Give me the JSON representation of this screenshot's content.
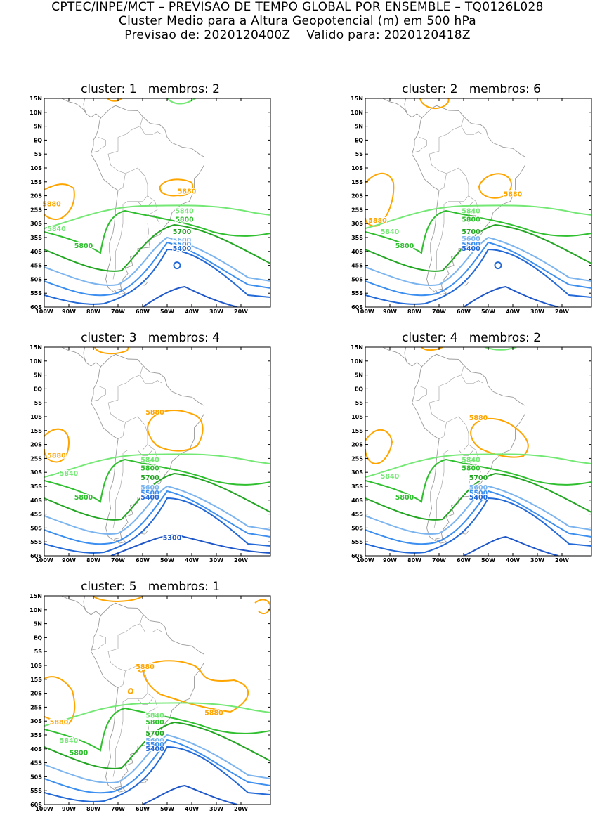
{
  "header": {
    "line1": "CPTEC/INPE/MCT – PREVISAO DE TEMPO GLOBAL POR ENSEMBLE – TQ0126L028",
    "line2": "Cluster Medio para a Altura Geopotencial (m) em 500 hPa",
    "line3": "Previsao de: 2020120400Z    Valido para: 2020120418Z"
  },
  "axes": {
    "lat_ticks": [
      "15N",
      "10N",
      "5N",
      "EQ",
      "5S",
      "10S",
      "15S",
      "20S",
      "25S",
      "30S",
      "35S",
      "40S",
      "45S",
      "50S",
      "55S",
      "60S"
    ],
    "lon_ticks": [
      "100W",
      "90W",
      "80W",
      "70W",
      "60W",
      "50W",
      "40W",
      "30W",
      "20W"
    ]
  },
  "colors": {
    "5300": "#1f57c9",
    "5400": "#2369d7",
    "5500": "#3c8ff0",
    "5600": "#7bb4ee",
    "5700": "#24a624",
    "5800": "#2fbf2f",
    "5840": "#74e874",
    "5880": "#ffa500",
    "coast": "#9a9a9a"
  },
  "panels": [
    {
      "title": "cluster: 1   membros: 2",
      "labels": [
        {
          "text": "5880",
          "lon": -97,
          "lat": -23,
          "color": "5880"
        },
        {
          "text": "5880",
          "lon": -42,
          "lat": -18.5,
          "color": "5880"
        },
        {
          "text": "5840",
          "lon": -95,
          "lat": -32,
          "color": "5840"
        },
        {
          "text": "5840",
          "lon": -43,
          "lat": -25.5,
          "color": "5840"
        },
        {
          "text": "5800",
          "lon": -43,
          "lat": -28.5,
          "color": "5800"
        },
        {
          "text": "5800",
          "lon": -84,
          "lat": -38,
          "color": "5800"
        },
        {
          "text": "5700",
          "lon": -44,
          "lat": -33,
          "color": "5700"
        },
        {
          "text": "5600",
          "lon": -44,
          "lat": -36,
          "color": "5600"
        },
        {
          "text": "5500",
          "lon": -44,
          "lat": -37.5,
          "color": "5500"
        },
        {
          "text": "5400",
          "lon": -44,
          "lat": -39,
          "color": "5400"
        }
      ]
    },
    {
      "title": "cluster: 2   membros: 6",
      "labels": [
        {
          "text": "5880",
          "lon": -95,
          "lat": -29,
          "color": "5880"
        },
        {
          "text": "5880",
          "lon": -40,
          "lat": -19.5,
          "color": "5880"
        },
        {
          "text": "5840",
          "lon": -90,
          "lat": -33,
          "color": "5840"
        },
        {
          "text": "5840",
          "lon": -57,
          "lat": -25.5,
          "color": "5840"
        },
        {
          "text": "5800",
          "lon": -57,
          "lat": -28.5,
          "color": "5800"
        },
        {
          "text": "5800",
          "lon": -84,
          "lat": -38,
          "color": "5800"
        },
        {
          "text": "5700",
          "lon": -57,
          "lat": -33,
          "color": "5700"
        },
        {
          "text": "5600",
          "lon": -57,
          "lat": -35.5,
          "color": "5600"
        },
        {
          "text": "5500",
          "lon": -57,
          "lat": -37.5,
          "color": "5500"
        },
        {
          "text": "5400",
          "lon": -57,
          "lat": -39,
          "color": "5400"
        }
      ]
    },
    {
      "title": "cluster: 3   membros: 4",
      "labels": [
        {
          "text": "5880",
          "lon": -95,
          "lat": -24,
          "color": "5880"
        },
        {
          "text": "5880",
          "lon": -55,
          "lat": -8.5,
          "color": "5880"
        },
        {
          "text": "5840",
          "lon": -90,
          "lat": -30.5,
          "color": "5840"
        },
        {
          "text": "5840",
          "lon": -57,
          "lat": -25.5,
          "color": "5840"
        },
        {
          "text": "5800",
          "lon": -57,
          "lat": -28.5,
          "color": "5800"
        },
        {
          "text": "5800",
          "lon": -84,
          "lat": -39,
          "color": "5800"
        },
        {
          "text": "5700",
          "lon": -57,
          "lat": -32,
          "color": "5700"
        },
        {
          "text": "5600",
          "lon": -57,
          "lat": -35.5,
          "color": "5600"
        },
        {
          "text": "5500",
          "lon": -57,
          "lat": -37.5,
          "color": "5500"
        },
        {
          "text": "5400",
          "lon": -57,
          "lat": -39,
          "color": "5400"
        },
        {
          "text": "5300",
          "lon": -48,
          "lat": -53.5,
          "color": "5300"
        }
      ]
    },
    {
      "title": "cluster: 4   membros: 2",
      "labels": [
        {
          "text": "5880",
          "lon": -54,
          "lat": -10.5,
          "color": "5880"
        },
        {
          "text": "5840",
          "lon": -90,
          "lat": -31.5,
          "color": "5840"
        },
        {
          "text": "5840",
          "lon": -57,
          "lat": -25.5,
          "color": "5840"
        },
        {
          "text": "5800",
          "lon": -57,
          "lat": -28.5,
          "color": "5800"
        },
        {
          "text": "5800",
          "lon": -84,
          "lat": -39,
          "color": "5800"
        },
        {
          "text": "5700",
          "lon": -54,
          "lat": -32,
          "color": "5700"
        },
        {
          "text": "5600",
          "lon": -54,
          "lat": -35.5,
          "color": "5600"
        },
        {
          "text": "5500",
          "lon": -54,
          "lat": -37.5,
          "color": "5500"
        },
        {
          "text": "5400",
          "lon": -54,
          "lat": -39,
          "color": "5400"
        }
      ]
    },
    {
      "title": "cluster: 5   membros: 1",
      "labels": [
        {
          "text": "5880",
          "lon": -94,
          "lat": -30.5,
          "color": "5880"
        },
        {
          "text": "5880",
          "lon": -59,
          "lat": -10.5,
          "color": "5880"
        },
        {
          "text": "5880",
          "lon": -31,
          "lat": -27,
          "color": "5880"
        },
        {
          "text": "5840",
          "lon": -90,
          "lat": -37,
          "color": "5840"
        },
        {
          "text": "5840",
          "lon": -55,
          "lat": -28,
          "color": "5840"
        },
        {
          "text": "5800",
          "lon": -55,
          "lat": -30.5,
          "color": "5800"
        },
        {
          "text": "5800",
          "lon": -86,
          "lat": -41.5,
          "color": "5800"
        },
        {
          "text": "5700",
          "lon": -55,
          "lat": -34.5,
          "color": "5700"
        },
        {
          "text": "5600",
          "lon": -55,
          "lat": -37,
          "color": "5600"
        },
        {
          "text": "5500",
          "lon": -55,
          "lat": -38.5,
          "color": "5500"
        },
        {
          "text": "5400",
          "lon": -55,
          "lat": -40,
          "color": "5400"
        }
      ]
    }
  ]
}
